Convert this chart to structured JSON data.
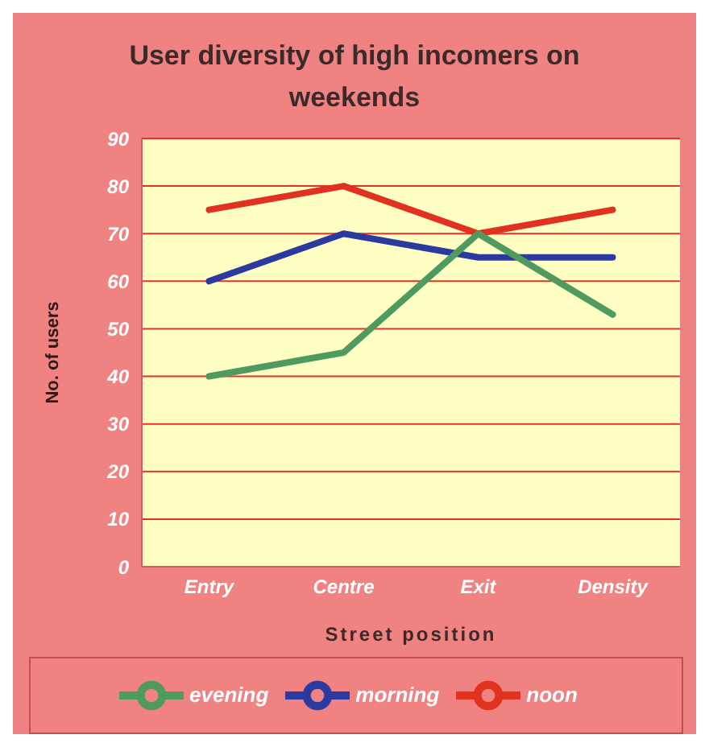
{
  "chart_data": {
    "type": "line",
    "title": "User diversity of high incomers on weekends",
    "xlabel": "Street position",
    "ylabel": "No. of users",
    "categories": [
      "Entry",
      "Centre",
      "Exit",
      "Density"
    ],
    "series": [
      {
        "name": "morning",
        "color": "#2a3a9e",
        "values": [
          60,
          70,
          65,
          65
        ]
      },
      {
        "name": "noon",
        "color": "#e0321e",
        "values": [
          75,
          80,
          70,
          75
        ]
      },
      {
        "name": "evening",
        "color": "#4f9a5e",
        "values": [
          40,
          45,
          70,
          53
        ]
      }
    ],
    "ylim": [
      0,
      90
    ],
    "yticks": [
      0,
      10,
      20,
      30,
      40,
      50,
      60,
      70,
      80,
      90
    ],
    "grid": "y",
    "legend": "bottom",
    "marker": "none",
    "line_style": "solid"
  }
}
